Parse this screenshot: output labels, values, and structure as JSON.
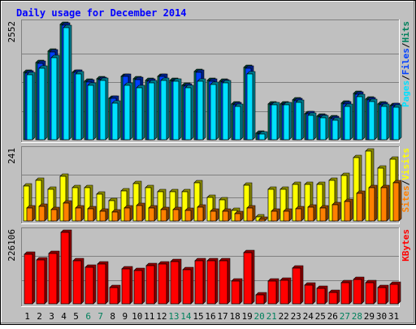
{
  "chart_data": {
    "type": "bar",
    "title": "Daily usage for December 2014",
    "categories": [
      "1",
      "2",
      "3",
      "4",
      "5",
      "6",
      "7",
      "8",
      "9",
      "10",
      "11",
      "12",
      "13",
      "14",
      "15",
      "16",
      "17",
      "18",
      "19",
      "20",
      "21",
      "22",
      "23",
      "24",
      "25",
      "26",
      "27",
      "28",
      "29",
      "30",
      "31"
    ],
    "weekend_days": [
      "6",
      "7",
      "13",
      "14",
      "20",
      "21",
      "27",
      "28"
    ],
    "panels": [
      {
        "id": "hits-files-pages",
        "ymax_label": "2552",
        "ymax": 2552,
        "grid": true,
        "legend": [
          {
            "text": "Pages",
            "color": "#00e0ff"
          },
          {
            "text": "/",
            "color": "#000000"
          },
          {
            "text": "Files",
            "color": "#0040ff"
          },
          {
            "text": "/",
            "color": "#000000"
          },
          {
            "text": "Hits",
            "color": "#00805c"
          }
        ],
        "series": [
          {
            "name": "Hits",
            "color": "#00805c",
            "values": [
              1490,
              1700,
              1950,
              2552,
              1500,
              1290,
              1340,
              920,
              1410,
              1340,
              1310,
              1410,
              1310,
              1200,
              1510,
              1310,
              1290,
              790,
              1600,
              140,
              790,
              790,
              880,
              580,
              520,
              480,
              800,
              1020,
              890,
              790,
              760
            ]
          },
          {
            "name": "Files",
            "color": "#0040ff",
            "values": [
              1480,
              1690,
              1940,
              2540,
              1490,
              1280,
              1330,
              910,
              1400,
              1330,
              1300,
              1400,
              1300,
              1190,
              1500,
              1300,
              1280,
              780,
              1590,
              130,
              780,
              780,
              870,
              570,
              510,
              470,
              790,
              1010,
              880,
              780,
              750
            ]
          },
          {
            "name": "Pages",
            "color": "#00e0ff",
            "values": [
              1430,
              1580,
              1820,
              2480,
              1450,
              1200,
              1310,
              800,
              1200,
              1150,
              1250,
              1320,
              1290,
              1150,
              1300,
              1220,
              1250,
              740,
              1460,
              120,
              770,
              770,
              830,
              540,
              480,
              440,
              730,
              960,
              850,
              730,
              720
            ]
          }
        ]
      },
      {
        "id": "visits-sites",
        "ymax_label": "241",
        "ymax": 241,
        "grid": true,
        "legend": [
          {
            "text": "Sites",
            "color": "#ff8000"
          },
          {
            "text": "/",
            "color": "#000000"
          },
          {
            "text": "Visits",
            "color": "#ffff00"
          }
        ],
        "series": [
          {
            "name": "Visits",
            "color": "#ffff00",
            "values": [
              120,
              140,
              110,
              155,
              115,
              115,
              92,
              70,
              105,
              130,
              115,
              102,
              101,
              101,
              132,
              80,
              74,
              36,
              122,
              15,
              110,
              108,
              126,
              125,
              126,
              140,
              157,
              218,
              241,
              183,
              213
            ]
          },
          {
            "name": "Sites",
            "color": "#ff8000",
            "values": [
              45,
              50,
              40,
              62,
              45,
              43,
              33,
              30,
              45,
              52,
              45,
              38,
              40,
              37,
              48,
              35,
              35,
              25,
              45,
              6,
              35,
              33,
              42,
              48,
              45,
              55,
              67,
              95,
              114,
              115,
              132
            ]
          }
        ]
      },
      {
        "id": "kbytes",
        "ymax_label": "226106",
        "ymax": 226106,
        "grid": true,
        "legend": [
          {
            "text": "KBytes",
            "color": "#ff0000"
          }
        ],
        "series": [
          {
            "name": "KBytes",
            "color": "#ff0000",
            "values": [
              158000,
              139000,
              160000,
              226106,
              136000,
              115000,
              125000,
              52000,
              110000,
              106000,
              121000,
              126000,
              134000,
              109000,
              136000,
              135000,
              136000,
              73000,
              162000,
              28000,
              73000,
              74000,
              112000,
              60000,
              50000,
              37000,
              67000,
              78000,
              68000,
              52000,
              62000
            ]
          }
        ]
      }
    ]
  }
}
